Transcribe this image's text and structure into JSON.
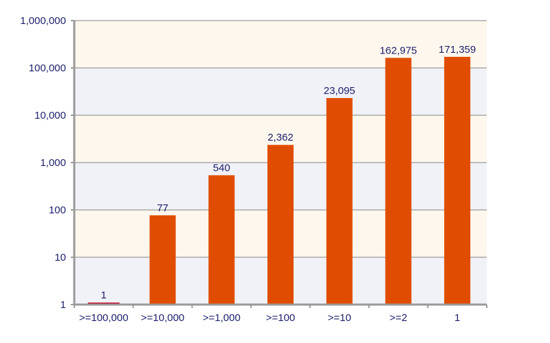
{
  "chart_data": {
    "type": "bar",
    "title": "",
    "xlabel": "",
    "ylabel": "",
    "y_scale": "log",
    "ylim": [
      1,
      1000000
    ],
    "grid": true,
    "legend": "none",
    "categories": [
      ">=100,000",
      ">=10,000",
      ">=1,000",
      ">=100",
      ">=10",
      ">=2",
      "1"
    ],
    "values": [
      1,
      77,
      540,
      2362,
      23095,
      162975,
      171359
    ],
    "data_labels": [
      "1",
      "77",
      "540",
      "2,362",
      "23,095",
      "162,975",
      "171,359"
    ],
    "y_ticks": [
      1,
      10,
      100,
      1000,
      10000,
      100000,
      1000000
    ],
    "y_tick_labels": [
      "1",
      "10",
      "100",
      "1,000",
      "10,000",
      "100,000",
      "1,000,000"
    ],
    "colors": {
      "bar": "#e04d00",
      "min_bar": "#c8102e",
      "band_a": "#f1f1f8",
      "band_b": "#fdf7ed",
      "grid": "#aaaaaa",
      "axis": "#999999",
      "text": "#1b1f6b"
    }
  }
}
